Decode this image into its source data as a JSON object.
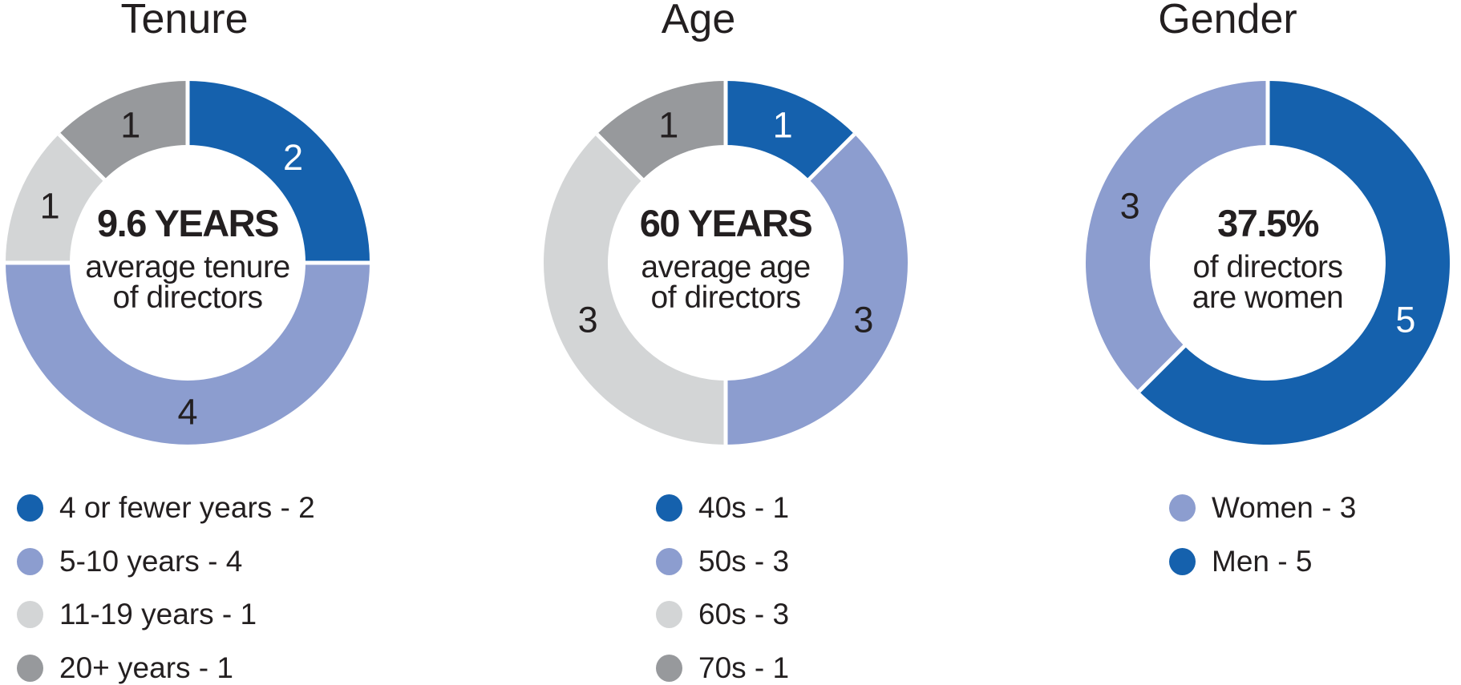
{
  "page": {
    "background": "#ffffff",
    "text_color": "#231F20"
  },
  "colors": {
    "blue": "#1561AD",
    "periwinkle": "#8C9DCF",
    "light_gray": "#D3D5D6",
    "dark_gray": "#97999C",
    "separator": "#FFFFFF",
    "slice_label_light": "#FFFFFF",
    "slice_label_dark": "#231F20"
  },
  "chart_data": [
    {
      "type": "pie",
      "subtype": "donut",
      "title": "Tenure",
      "center_label": {
        "headline": "9.6 YEARS",
        "lines": [
          "average tenure",
          "of directors"
        ]
      },
      "categories": [
        "4 or fewer years",
        "5-10 years",
        "11-19 years",
        "20+ years"
      ],
      "values": [
        2,
        4,
        1,
        1
      ],
      "total": 8,
      "segment_colors": [
        "#1561AD",
        "#8C9DCF",
        "#D3D5D6",
        "#97999C"
      ],
      "slice_labels": [
        "2",
        "4",
        "1",
        "1"
      ],
      "slice_label_colors": [
        "#FFFFFF",
        "#231F20",
        "#231F20",
        "#231F20"
      ],
      "start_angle_deg": 0,
      "clockwise": true,
      "legend": [
        {
          "text": "4 or fewer years - 2",
          "color": "#1561AD"
        },
        {
          "text": "5-10 years - 4",
          "color": "#8C9DCF"
        },
        {
          "text": "11-19 years - 1",
          "color": "#D3D5D6"
        },
        {
          "text": "20+ years - 1",
          "color": "#97999C"
        }
      ]
    },
    {
      "type": "pie",
      "subtype": "donut",
      "title": "Age",
      "center_label": {
        "headline": "60 YEARS",
        "lines": [
          "average age",
          "of directors"
        ]
      },
      "categories": [
        "40s",
        "50s",
        "60s",
        "70s"
      ],
      "values": [
        1,
        3,
        3,
        1
      ],
      "total": 8,
      "segment_colors": [
        "#1561AD",
        "#8C9DCF",
        "#D3D5D6",
        "#97999C"
      ],
      "slice_labels": [
        "1",
        "3",
        "3",
        "1"
      ],
      "slice_label_colors": [
        "#FFFFFF",
        "#231F20",
        "#231F20",
        "#231F20"
      ],
      "start_angle_deg": 0,
      "clockwise": true,
      "legend": [
        {
          "text": "40s - 1",
          "color": "#1561AD"
        },
        {
          "text": "50s - 3",
          "color": "#8C9DCF"
        },
        {
          "text": "60s - 3",
          "color": "#D3D5D6"
        },
        {
          "text": "70s - 1",
          "color": "#97999C"
        }
      ]
    },
    {
      "type": "pie",
      "subtype": "donut",
      "title": "Gender",
      "center_label": {
        "headline": "37.5%",
        "lines": [
          "of directors",
          "are women"
        ]
      },
      "categories": [
        "Men",
        "Women"
      ],
      "values": [
        5,
        3
      ],
      "total": 8,
      "segment_colors": [
        "#1561AD",
        "#8C9DCF"
      ],
      "slice_labels": [
        "5",
        "3"
      ],
      "slice_label_colors": [
        "#FFFFFF",
        "#231F20"
      ],
      "start_angle_deg": 0,
      "clockwise": true,
      "legend": [
        {
          "text": "Women - 3",
          "color": "#8C9DCF"
        },
        {
          "text": "Men - 5",
          "color": "#1561AD"
        }
      ]
    }
  ]
}
